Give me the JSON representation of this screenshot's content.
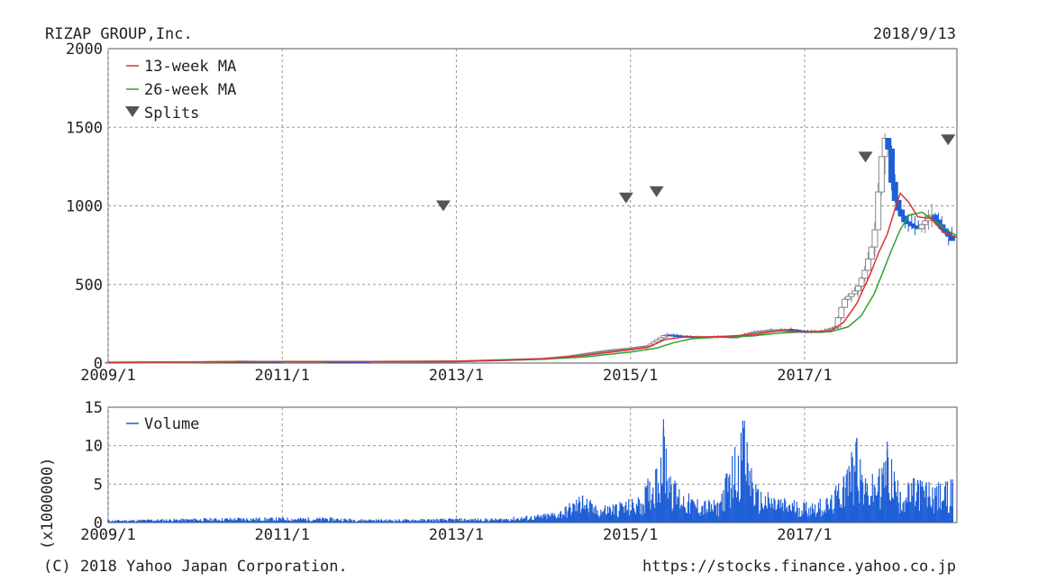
{
  "header": {
    "company": "RIZAP GROUP,Inc.",
    "date": "2018/9/13"
  },
  "footer": {
    "copyright": "(C) 2018 Yahoo Japan Corporation.",
    "url": "https://stocks.finance.yahoo.co.jp"
  },
  "colors": {
    "ma13": "#e03030",
    "ma26": "#30a030",
    "split": "#555555",
    "up_candle": "#888888",
    "down_candle": "#1f5fd6",
    "volume": "#1f5fd6"
  },
  "chart_data": [
    {
      "type": "candlestick",
      "title": "RIZAP GROUP,Inc.",
      "ylim": [
        0,
        2000
      ],
      "yticks": [
        "0",
        "500",
        "1000",
        "1500",
        "2000"
      ],
      "xlim": [
        2009.0,
        2018.75
      ],
      "xticks": [
        "2009/1",
        "2011/1",
        "2013/1",
        "2015/1",
        "2017/1"
      ],
      "grid": true,
      "legend_position": "top-left",
      "legend": [
        "13-week MA",
        "26-week MA",
        "Splits"
      ],
      "price": [
        [
          2009.0,
          5
        ],
        [
          2009.5,
          6
        ],
        [
          2010.0,
          8
        ],
        [
          2010.5,
          12
        ],
        [
          2011.0,
          10
        ],
        [
          2011.5,
          11
        ],
        [
          2012.0,
          10
        ],
        [
          2012.5,
          11
        ],
        [
          2013.0,
          13
        ],
        [
          2013.5,
          22
        ],
        [
          2014.0,
          30
        ],
        [
          2014.3,
          45
        ],
        [
          2014.6,
          70
        ],
        [
          2014.8,
          85
        ],
        [
          2015.0,
          95
        ],
        [
          2015.2,
          110
        ],
        [
          2015.4,
          180
        ],
        [
          2015.6,
          170
        ],
        [
          2015.8,
          165
        ],
        [
          2016.0,
          170
        ],
        [
          2016.2,
          165
        ],
        [
          2016.4,
          195
        ],
        [
          2016.6,
          210
        ],
        [
          2016.8,
          215
        ],
        [
          2017.0,
          200
        ],
        [
          2017.2,
          200
        ],
        [
          2017.35,
          230
        ],
        [
          2017.45,
          400
        ],
        [
          2017.6,
          470
        ],
        [
          2017.7,
          600
        ],
        [
          2017.8,
          800
        ],
        [
          2017.88,
          1300
        ],
        [
          2017.94,
          1480
        ],
        [
          2018.0,
          1150
        ],
        [
          2018.05,
          1000
        ],
        [
          2018.15,
          900
        ],
        [
          2018.3,
          850
        ],
        [
          2018.45,
          950
        ],
        [
          2018.55,
          870
        ],
        [
          2018.65,
          810
        ],
        [
          2018.72,
          760
        ]
      ],
      "ma13": [
        [
          2009.0,
          5
        ],
        [
          2010.0,
          8
        ],
        [
          2011.0,
          10
        ],
        [
          2012.0,
          10
        ],
        [
          2013.0,
          12
        ],
        [
          2013.5,
          18
        ],
        [
          2014.0,
          27
        ],
        [
          2014.5,
          50
        ],
        [
          2015.0,
          85
        ],
        [
          2015.2,
          100
        ],
        [
          2015.4,
          150
        ],
        [
          2015.6,
          165
        ],
        [
          2016.0,
          168
        ],
        [
          2016.4,
          180
        ],
        [
          2016.7,
          205
        ],
        [
          2017.0,
          200
        ],
        [
          2017.3,
          205
        ],
        [
          2017.45,
          260
        ],
        [
          2017.6,
          380
        ],
        [
          2017.75,
          560
        ],
        [
          2017.85,
          700
        ],
        [
          2017.95,
          820
        ],
        [
          2018.05,
          1000
        ],
        [
          2018.1,
          1080
        ],
        [
          2018.2,
          1020
        ],
        [
          2018.3,
          930
        ],
        [
          2018.45,
          920
        ],
        [
          2018.6,
          830
        ],
        [
          2018.75,
          800
        ]
      ],
      "ma26": [
        [
          2009.0,
          5
        ],
        [
          2010.0,
          7
        ],
        [
          2011.0,
          9
        ],
        [
          2012.0,
          10
        ],
        [
          2013.0,
          11
        ],
        [
          2013.5,
          16
        ],
        [
          2014.0,
          24
        ],
        [
          2014.5,
          40
        ],
        [
          2015.0,
          70
        ],
        [
          2015.3,
          95
        ],
        [
          2015.5,
          130
        ],
        [
          2015.7,
          155
        ],
        [
          2016.0,
          165
        ],
        [
          2016.4,
          172
        ],
        [
          2016.7,
          190
        ],
        [
          2017.0,
          198
        ],
        [
          2017.3,
          200
        ],
        [
          2017.5,
          230
        ],
        [
          2017.65,
          300
        ],
        [
          2017.8,
          440
        ],
        [
          2017.9,
          580
        ],
        [
          2018.0,
          720
        ],
        [
          2018.1,
          850
        ],
        [
          2018.2,
          940
        ],
        [
          2018.35,
          960
        ],
        [
          2018.5,
          900
        ],
        [
          2018.65,
          840
        ],
        [
          2018.75,
          810
        ]
      ],
      "splits": [
        {
          "x": 2012.85,
          "y": 1000
        },
        {
          "x": 2014.95,
          "y": 1050
        },
        {
          "x": 2015.3,
          "y": 1090
        },
        {
          "x": 2017.7,
          "y": 1310
        },
        {
          "x": 2018.65,
          "y": 1420
        }
      ]
    },
    {
      "type": "bar",
      "ylabel": "(x1000000)",
      "ylim": [
        0,
        15
      ],
      "yticks": [
        "0",
        "5",
        "10",
        "15"
      ],
      "xlim": [
        2009.0,
        2018.75
      ],
      "xticks": [
        "2009/1",
        "2011/1",
        "2013/1",
        "2015/1",
        "2017/1"
      ],
      "grid": true,
      "legend_position": "top-left",
      "legend": [
        "Volume"
      ],
      "volume": [
        [
          2009.0,
          0.3
        ],
        [
          2009.5,
          0.4
        ],
        [
          2010.0,
          0.5
        ],
        [
          2010.5,
          0.6
        ],
        [
          2011.0,
          0.6
        ],
        [
          2011.5,
          0.6
        ],
        [
          2012.0,
          0.4
        ],
        [
          2012.5,
          0.4
        ],
        [
          2013.0,
          0.5
        ],
        [
          2013.5,
          0.5
        ],
        [
          2014.0,
          1.0
        ],
        [
          2014.2,
          1.5
        ],
        [
          2014.45,
          3.5
        ],
        [
          2014.6,
          2.0
        ],
        [
          2014.9,
          2.5
        ],
        [
          2015.1,
          3.0
        ],
        [
          2015.3,
          7.0
        ],
        [
          2015.38,
          12.2
        ],
        [
          2015.5,
          5.0
        ],
        [
          2015.7,
          3.0
        ],
        [
          2016.0,
          2.5
        ],
        [
          2016.3,
          12.3
        ],
        [
          2016.45,
          4.0
        ],
        [
          2016.7,
          3.0
        ],
        [
          2017.0,
          2.5
        ],
        [
          2017.3,
          3.0
        ],
        [
          2017.45,
          6.0
        ],
        [
          2017.55,
          8.5
        ],
        [
          2017.6,
          11.0
        ],
        [
          2017.7,
          5.0
        ],
        [
          2017.85,
          6.0
        ],
        [
          2017.95,
          9.5
        ],
        [
          2018.1,
          4.0
        ],
        [
          2018.3,
          5.5
        ],
        [
          2018.5,
          4.5
        ],
        [
          2018.7,
          5.0
        ]
      ]
    }
  ]
}
